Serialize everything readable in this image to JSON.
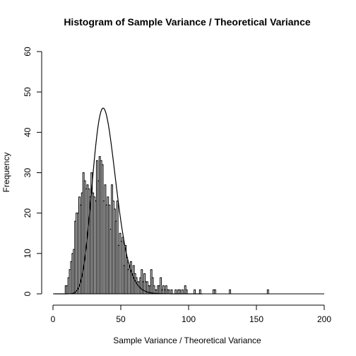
{
  "chart_data": {
    "type": "bar",
    "title": "Histogram of Sample Variance / Theoretical Variance",
    "xlabel": "Sample Variance / Theoretical Variance",
    "ylabel": "Frequency",
    "xlim": [
      0,
      200
    ],
    "ylim": [
      0,
      60
    ],
    "xticks": [
      0,
      50,
      100,
      150,
      200
    ],
    "yticks": [
      0,
      10,
      20,
      30,
      40,
      50,
      60
    ],
    "bin_width": 1,
    "bin_start": 0,
    "counts": [
      0,
      0,
      0,
      0,
      0,
      0,
      0,
      0,
      0,
      2,
      2,
      4,
      6,
      8,
      10,
      11,
      18,
      20,
      20,
      24,
      22,
      25,
      30,
      28,
      26,
      27,
      26,
      24,
      30,
      25,
      24,
      23,
      33,
      28,
      34,
      33,
      32,
      23,
      27,
      22,
      24,
      22,
      16,
      27,
      23,
      21,
      18,
      23,
      12,
      15,
      13,
      14,
      7,
      12,
      9,
      6,
      7,
      8,
      5,
      7,
      5,
      4,
      3,
      3,
      4,
      6,
      3,
      5,
      3,
      3,
      2,
      2,
      6,
      4,
      2,
      1,
      1,
      2,
      2,
      4,
      1,
      2,
      1,
      2,
      1,
      1,
      0,
      1,
      0,
      0,
      1,
      0,
      1,
      1,
      0,
      1,
      0,
      2,
      1,
      0,
      0,
      0,
      0,
      0,
      1,
      0,
      0,
      0,
      1,
      0,
      0,
      0,
      0,
      0,
      0,
      0,
      0,
      0,
      1,
      1,
      0,
      0,
      0,
      0,
      0,
      0,
      0,
      0,
      0,
      0,
      1,
      0,
      0,
      0,
      0,
      0,
      0,
      0,
      0,
      0,
      0,
      0,
      0,
      0,
      0,
      0,
      0,
      0,
      0,
      0,
      0,
      0,
      0,
      0,
      0,
      0,
      0,
      0,
      1,
      0
    ],
    "overlay_curve": {
      "type": "chi-square density scaled",
      "peak_x": 37,
      "peak_y": 46
    },
    "grid": false,
    "legend": "none"
  }
}
